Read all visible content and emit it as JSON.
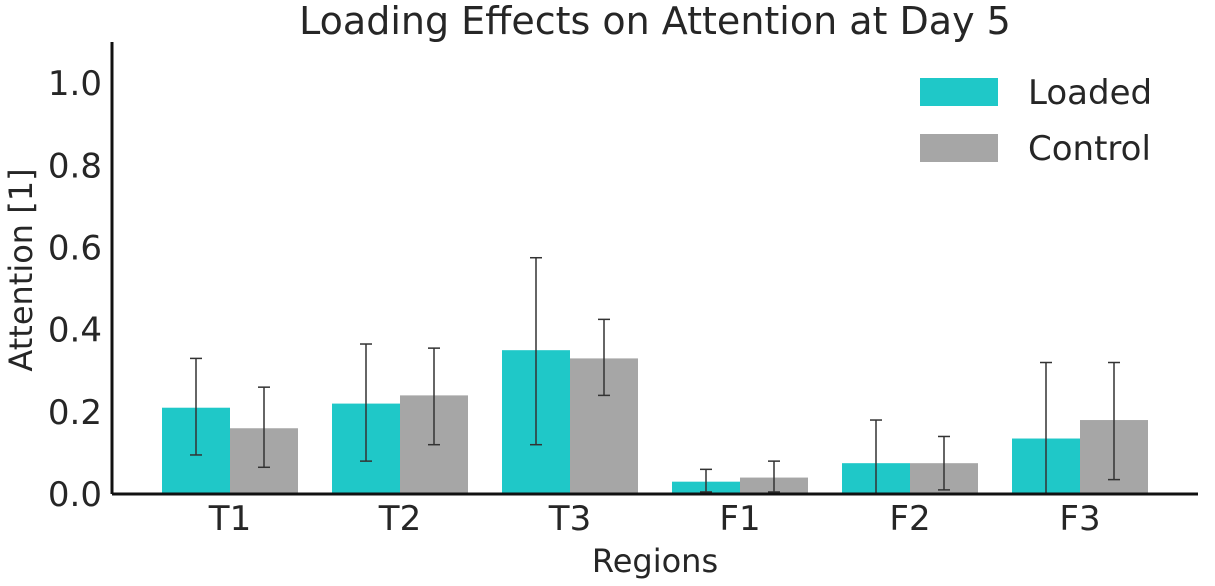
{
  "chart_data": {
    "type": "bar",
    "title": "Loading Effects on Attention at Day 5",
    "xlabel": "Regions",
    "ylabel": "Attention [1]",
    "categories": [
      "T1",
      "T2",
      "T3",
      "F1",
      "F2",
      "F3"
    ],
    "ylim": [
      0,
      1.1
    ],
    "yticks": [
      "0.0",
      "0.2",
      "0.4",
      "0.6",
      "0.8",
      "1.0"
    ],
    "series": [
      {
        "name": "Loaded",
        "color": "#1fc8c8",
        "values": [
          0.21,
          0.22,
          0.35,
          0.03,
          0.075,
          0.135
        ],
        "err_low": [
          0.095,
          0.08,
          0.12,
          0.005,
          0.0,
          0.0
        ],
        "err_high": [
          0.33,
          0.365,
          0.575,
          0.06,
          0.18,
          0.32
        ]
      },
      {
        "name": "Control",
        "color": "#a6a6a6",
        "values": [
          0.16,
          0.24,
          0.33,
          0.04,
          0.075,
          0.18
        ],
        "err_low": [
          0.065,
          0.12,
          0.24,
          0.005,
          0.01,
          0.035
        ],
        "err_high": [
          0.26,
          0.355,
          0.425,
          0.08,
          0.14,
          0.32
        ]
      }
    ],
    "legend_position": "top-right",
    "grid": false
  }
}
